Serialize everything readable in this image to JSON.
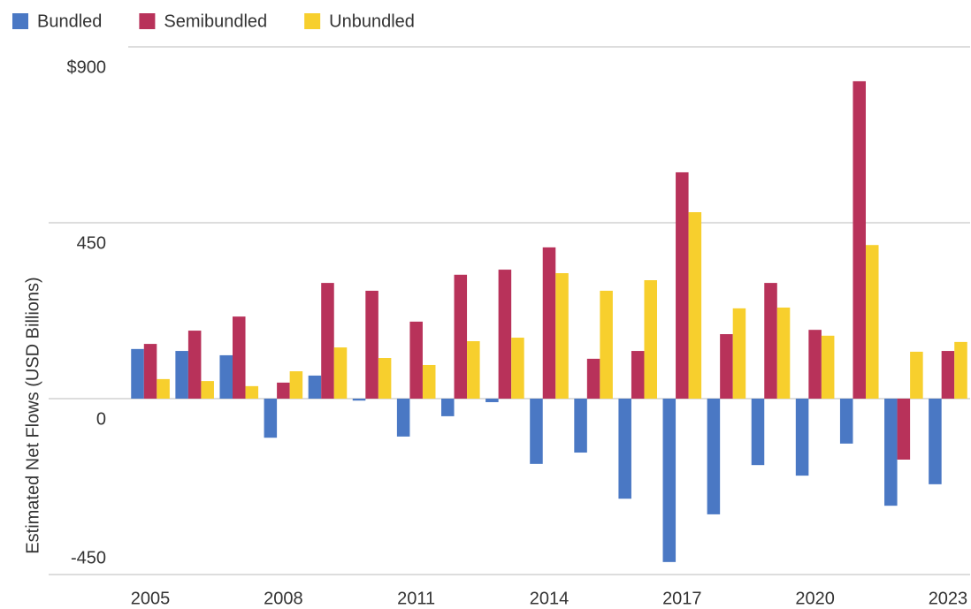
{
  "chart_data": {
    "type": "bar",
    "y_label": "Estimated Net Flows (USD Billions)",
    "categories": [
      "2005",
      null,
      null,
      "2008",
      null,
      null,
      "2011",
      null,
      null,
      "2014",
      null,
      null,
      "2017",
      null,
      null,
      "2020",
      null,
      null,
      "2023"
    ],
    "series": [
      {
        "name": "Bundled",
        "color": "#4a78c4",
        "values": [
          127,
          122,
          111,
          -100,
          59,
          -5,
          -97,
          -45,
          -9,
          -167,
          -138,
          -256,
          -418,
          -296,
          -170,
          -197,
          -115,
          -274,
          -219
        ]
      },
      {
        "name": "Semibundled",
        "color": "#b8325a",
        "values": [
          140,
          174,
          210,
          41,
          296,
          276,
          197,
          317,
          330,
          387,
          102,
          122,
          579,
          165,
          296,
          176,
          812,
          -156,
          122
        ]
      },
      {
        "name": "Unbundled",
        "color": "#f7cf2d",
        "values": [
          50,
          45,
          32,
          70,
          131,
          104,
          86,
          147,
          156,
          321,
          276,
          303,
          477,
          231,
          233,
          161,
          393,
          120,
          145
        ]
      }
    ],
    "ylim": [
      -450,
      900
    ],
    "yticks": [
      -450,
      0,
      450,
      {
        "value": 900,
        "label": "$900"
      }
    ],
    "grid": true
  }
}
